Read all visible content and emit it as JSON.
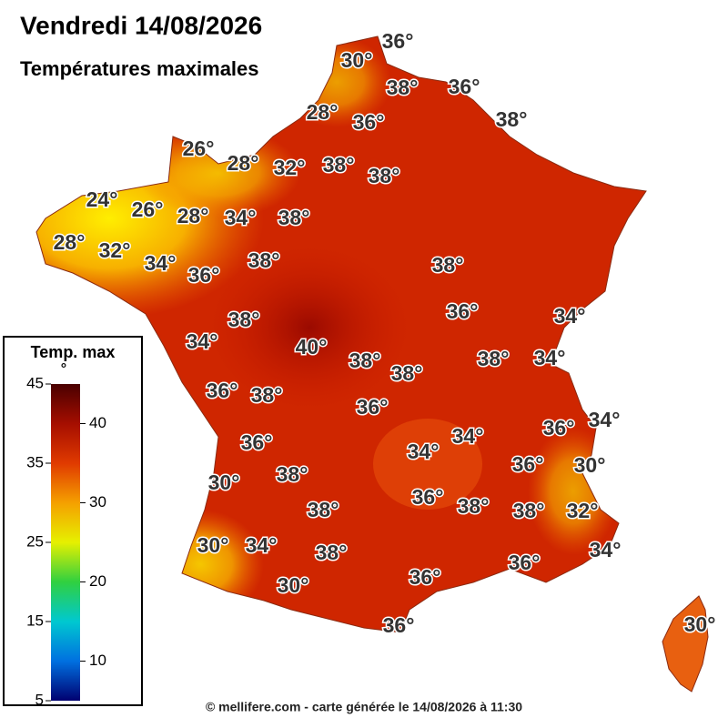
{
  "header": {
    "title": "Vendredi 14/08/2026",
    "subtitle": "Températures maximales"
  },
  "legend": {
    "title": "Temp. max",
    "unit": "°",
    "range": [
      5,
      45
    ],
    "left_ticks": [
      45,
      35,
      25,
      15,
      5
    ],
    "right_ticks": [
      40,
      30,
      20,
      10
    ]
  },
  "labels": [
    "36°",
    "30°",
    "38°",
    "36°",
    "28°",
    "36°",
    "38°",
    "26°",
    "28°",
    "32°",
    "38°",
    "38°",
    "24°",
    "26°",
    "28°",
    "34°",
    "38°",
    "28°",
    "32°",
    "34°",
    "36°",
    "38°",
    "38°",
    "36°",
    "34°",
    "38°",
    "34°",
    "40°",
    "38°",
    "38°",
    "38°",
    "34°",
    "36°",
    "38°",
    "36°",
    "36°",
    "34°",
    "36°",
    "34°",
    "34°",
    "36°",
    "30°",
    "30°",
    "38°",
    "36°",
    "38°",
    "38°",
    "38°",
    "32°",
    "30°",
    "34°",
    "38°",
    "34°",
    "36°",
    "30°",
    "36°",
    "36°",
    "30°"
  ],
  "footer": "© mellifere.com - carte générée le 14/08/2026 à 11:30"
}
